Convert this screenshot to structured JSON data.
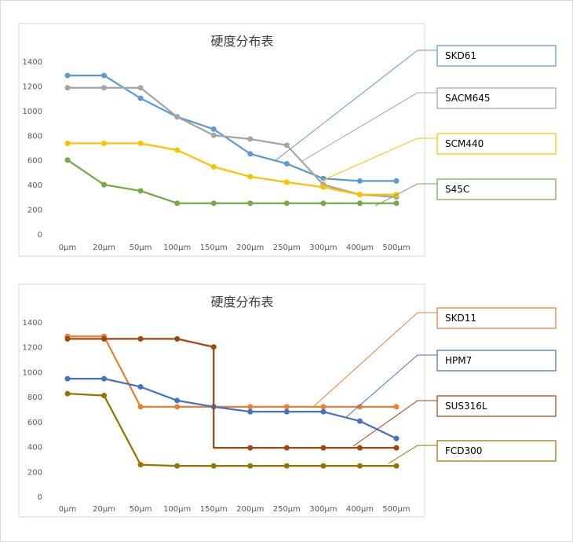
{
  "chart_data": [
    {
      "type": "line",
      "title": "硬度分布表",
      "categories": [
        "0μm",
        "20μm",
        "50μm",
        "100μm",
        "150μm",
        "200μm",
        "250μm",
        "300μm",
        "400μm",
        "500μm"
      ],
      "ylim": [
        0,
        1400
      ],
      "yticks": [
        0,
        200,
        400,
        600,
        800,
        1000,
        1200,
        1400
      ],
      "series": [
        {
          "name": "SKD61",
          "color": "#5b9bd5",
          "values": [
            1285,
            1285,
            1100,
            950,
            850,
            650,
            570,
            450,
            430,
            430
          ]
        },
        {
          "name": "SACM645",
          "color": "#a5a5a5",
          "values": [
            1185,
            1185,
            1185,
            950,
            800,
            770,
            720,
            400,
            320,
            300
          ]
        },
        {
          "name": "SCM440",
          "color": "#ffc000",
          "values": [
            735,
            735,
            735,
            680,
            545,
            465,
            420,
            380,
            320,
            320
          ]
        },
        {
          "name": "S45C",
          "color": "#70ad47",
          "values": [
            600,
            400,
            350,
            250,
            250,
            250,
            250,
            250,
            250,
            250
          ]
        }
      ]
    },
    {
      "type": "line",
      "title": "硬度分布表",
      "categories": [
        "0μm",
        "20μm",
        "50μm",
        "100μm",
        "150μm",
        "200μm",
        "250μm",
        "300μm",
        "400μm",
        "500μm"
      ],
      "ylim": [
        0,
        1400
      ],
      "yticks": [
        0,
        200,
        400,
        600,
        800,
        1000,
        1200,
        1400
      ],
      "series": [
        {
          "name": "SKD11",
          "color": "#ed7d31",
          "values": [
            1285,
            1285,
            720,
            720,
            720,
            720,
            720,
            720,
            720,
            720
          ]
        },
        {
          "name": "HPM7",
          "color": "#4472c4",
          "values": [
            945,
            945,
            880,
            770,
            720,
            680,
            680,
            680,
            605,
            465
          ]
        },
        {
          "name": "SUS316L",
          "color": "#9e480e",
          "values": [
            1265,
            1265,
            1265,
            1265,
            1200,
            390,
            390,
            390,
            390,
            390
          ]
        },
        {
          "name": "FCD300",
          "color": "#997300",
          "values": [
            825,
            810,
            255,
            245,
            245,
            245,
            245,
            245,
            245,
            245
          ]
        }
      ]
    }
  ]
}
